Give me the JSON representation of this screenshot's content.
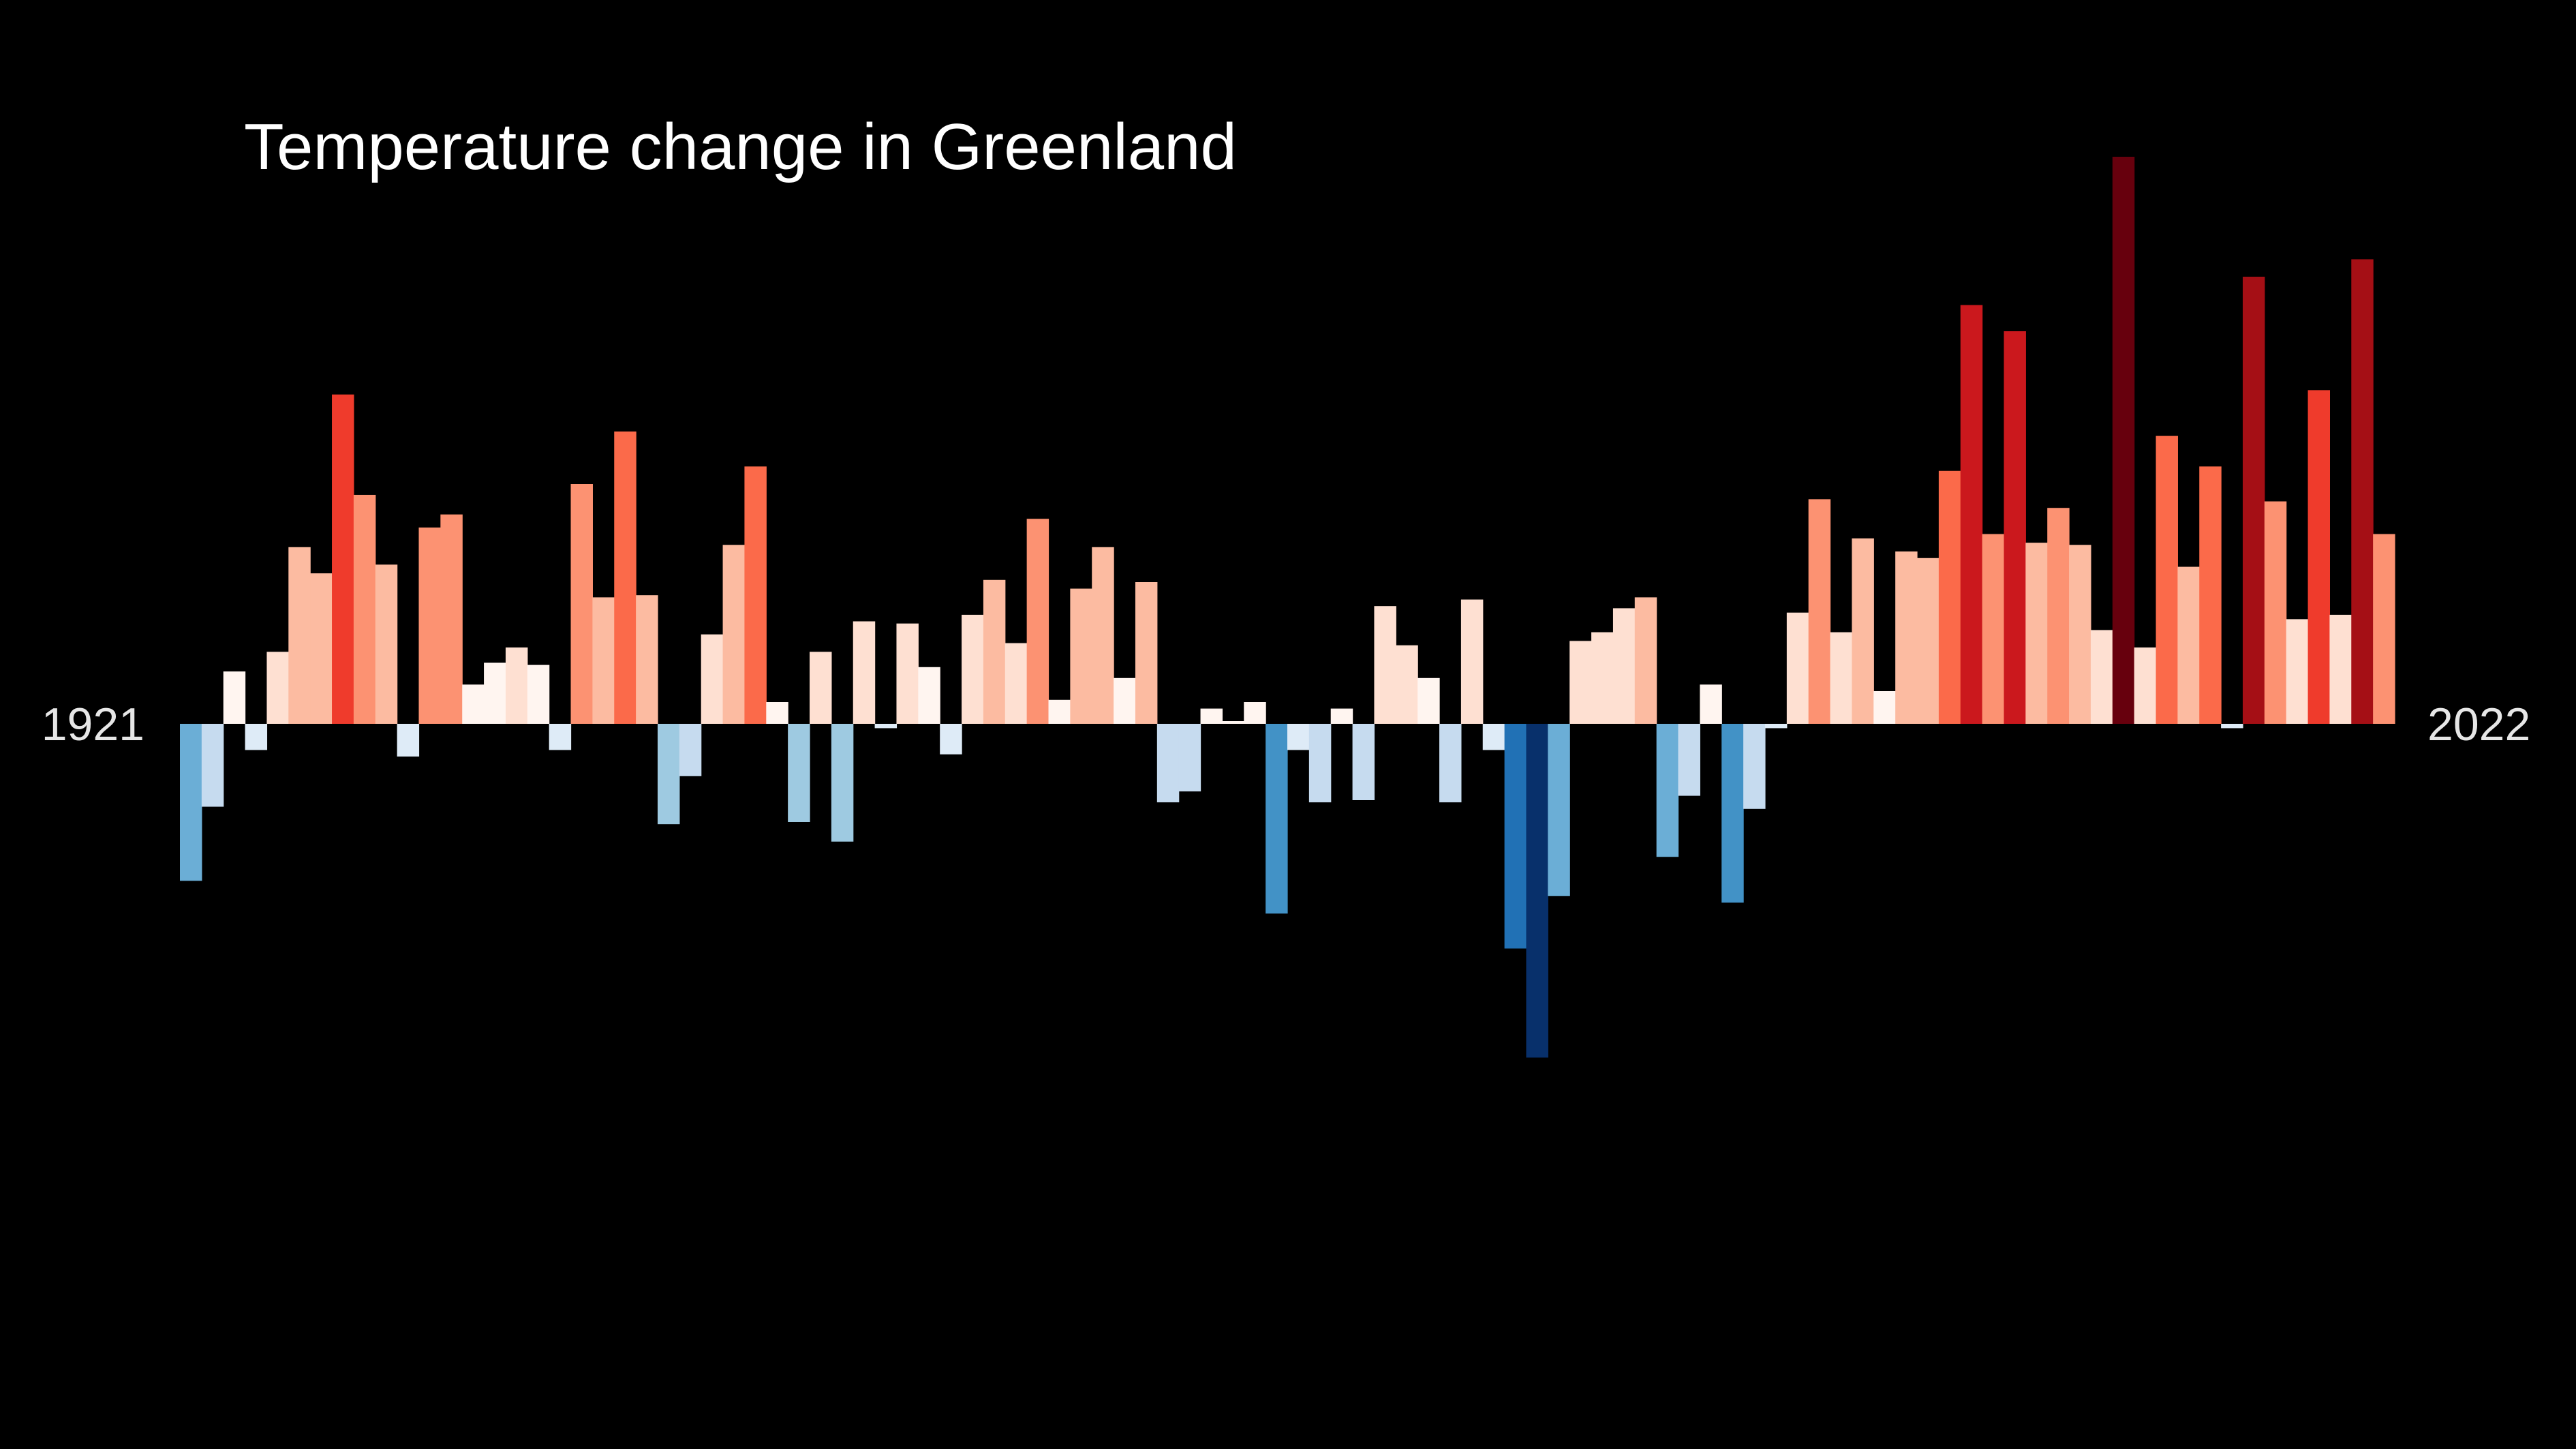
{
  "chart_data": {
    "type": "bar",
    "title": "Temperature change in Greenland",
    "xlabel": "",
    "ylabel": "",
    "start_label": "1921",
    "end_label": "2022",
    "x": [
      1921,
      1922,
      1923,
      1924,
      1925,
      1926,
      1927,
      1928,
      1929,
      1930,
      1931,
      1932,
      1933,
      1934,
      1935,
      1936,
      1937,
      1938,
      1939,
      1940,
      1941,
      1942,
      1943,
      1944,
      1945,
      1946,
      1947,
      1948,
      1949,
      1950,
      1951,
      1952,
      1953,
      1954,
      1955,
      1956,
      1957,
      1958,
      1959,
      1960,
      1961,
      1962,
      1963,
      1964,
      1965,
      1966,
      1967,
      1968,
      1969,
      1970,
      1971,
      1972,
      1973,
      1974,
      1975,
      1976,
      1977,
      1978,
      1979,
      1980,
      1981,
      1982,
      1983,
      1984,
      1985,
      1986,
      1987,
      1988,
      1989,
      1990,
      1991,
      1992,
      1993,
      1994,
      1995,
      1996,
      1997,
      1998,
      1999,
      2000,
      2001,
      2002,
      2003,
      2004,
      2005,
      2006,
      2007,
      2008,
      2009,
      2010,
      2011,
      2012,
      2013,
      2014,
      2015,
      2016,
      2017,
      2018,
      2019,
      2020,
      2021,
      2022
    ],
    "values": [
      -0.72,
      -0.38,
      0.24,
      -0.12,
      0.33,
      0.81,
      0.69,
      1.51,
      1.05,
      0.73,
      -0.15,
      0.9,
      0.96,
      0.18,
      0.28,
      0.35,
      0.27,
      -0.12,
      1.1,
      0.58,
      1.34,
      0.59,
      -0.46,
      -0.24,
      0.41,
      0.82,
      1.18,
      0.1,
      -0.45,
      0.33,
      -0.54,
      0.47,
      -0.02,
      0.46,
      0.26,
      -0.14,
      0.5,
      0.66,
      0.37,
      0.94,
      0.11,
      0.62,
      0.81,
      0.21,
      0.65,
      -0.36,
      -0.31,
      0.07,
      0.01,
      0.1,
      -0.87,
      -0.12,
      -0.36,
      0.07,
      -0.35,
      0.54,
      0.36,
      0.21,
      -0.36,
      0.57,
      -0.12,
      -1.03,
      -1.53,
      -0.79,
      0.38,
      0.42,
      0.53,
      0.58,
      -0.61,
      -0.33,
      0.18,
      -0.82,
      -0.39,
      -0.02,
      0.51,
      1.03,
      0.42,
      0.85,
      0.15,
      0.79,
      0.76,
      1.16,
      1.92,
      0.87,
      1.8,
      0.83,
      0.99,
      0.82,
      0.43,
      2.6,
      0.35,
      1.32,
      0.72,
      1.18,
      -0.02,
      2.05,
      1.02,
      0.48,
      1.53,
      0.5,
      2.13,
      0.87
    ],
    "ylim": [
      -2.5,
      3.0
    ],
    "grid": false,
    "legend": "none",
    "palette": {
      "background": "#000000",
      "text": "#ffffff",
      "warm": [
        "#fff5f0",
        "#fee0d2",
        "#fcbba1",
        "#fc9272",
        "#fb6a4a",
        "#ef3b2c",
        "#cb181d",
        "#a50f15",
        "#67000d"
      ],
      "cool": [
        "#deebf7",
        "#c6dbef",
        "#9ecae1",
        "#6baed6",
        "#4292c6",
        "#2171b5",
        "#08519c",
        "#08306b"
      ]
    }
  }
}
